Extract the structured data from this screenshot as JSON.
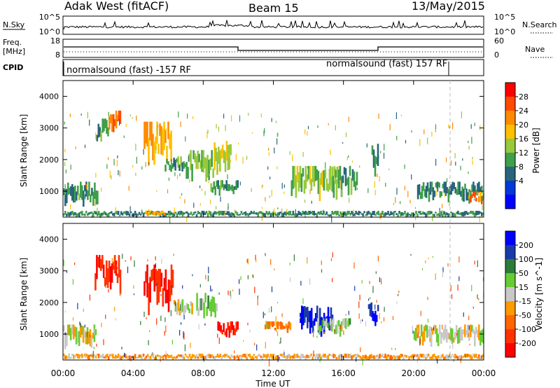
{
  "header": {
    "station": "Adak West (fitACF)",
    "beam": "Beam 15",
    "date": "13/May/2015"
  },
  "nsky_panel": {
    "left_label": "N.Sky",
    "left_ticks": [
      "10^5",
      "10^0"
    ],
    "right_ticks": [
      "10^5",
      "10^0"
    ],
    "right_label": "N.Search"
  },
  "freq_panel": {
    "left_label_1": "Freq.",
    "left_label_2": "[MHz]",
    "left_ticks": [
      "18",
      "8"
    ],
    "right_ticks": [
      "60",
      "0"
    ],
    "right_label": "Nave"
  },
  "cpid_panel": {
    "label": "CPID",
    "seg1": "normalsound (fast) -157 RF",
    "seg2": "normalsound (fast) 157 RF"
  },
  "time_axis": {
    "ticks": [
      "00:00",
      "04:00",
      "08:00",
      "12:00",
      "16:00",
      "20:00",
      "00:00"
    ],
    "label": "Time UT"
  },
  "power_colorbar": {
    "label": "Power [dB]",
    "ticks": [
      "28",
      "24",
      "20",
      "16",
      "12",
      "8",
      "4"
    ],
    "colors": [
      "#ff0000",
      "#ff4a00",
      "#ff8a00",
      "#ffc000",
      "#97c93c",
      "#3f9f4a",
      "#29657a",
      "#003ad8",
      "#0000ff"
    ]
  },
  "velocity_colorbar": {
    "label": "Velocity [m s^-1]",
    "ticks": [
      "200",
      "100",
      "50",
      "15",
      "-15",
      "-50",
      "-100",
      "-200"
    ],
    "colors": [
      "#0000ff",
      "#1a3aa8",
      "#2d7b3a",
      "#66cc33",
      "#c8c8c8",
      "#ff9a00",
      "#ff6600",
      "#ff3300",
      "#ff0000"
    ]
  },
  "chart_data": [
    {
      "type": "heatmap",
      "name": "power",
      "ylabel": "Slant Range [km]",
      "yticks": [
        "1000",
        "2000",
        "3000",
        "4000"
      ],
      "ylim": [
        180,
        4500
      ],
      "xlim": [
        0,
        24
      ],
      "patches": [
        {
          "t0": 0.0,
          "t1": 2.0,
          "r0": 650,
          "r1": 1300,
          "v": 9
        },
        {
          "t0": 1.9,
          "t1": 2.6,
          "r0": 2500,
          "r1": 3300,
          "v": 10
        },
        {
          "t0": 2.6,
          "t1": 3.3,
          "r0": 2850,
          "r1": 3550,
          "v": 24
        },
        {
          "t0": 4.6,
          "t1": 6.2,
          "r0": 1900,
          "r1": 3200,
          "v": 20
        },
        {
          "t0": 5.8,
          "t1": 7.0,
          "r0": 1650,
          "r1": 2100,
          "v": 10
        },
        {
          "t0": 7.0,
          "t1": 8.6,
          "r0": 1400,
          "r1": 2300,
          "v": 12
        },
        {
          "t0": 8.4,
          "t1": 10.0,
          "r0": 950,
          "r1": 1350,
          "v": 9
        },
        {
          "t0": 8.6,
          "t1": 9.6,
          "r0": 1600,
          "r1": 2700,
          "v": 14
        },
        {
          "t0": 13.0,
          "t1": 15.8,
          "r0": 900,
          "r1": 1800,
          "v": 13
        },
        {
          "t0": 15.2,
          "t1": 16.8,
          "r0": 1000,
          "r1": 1800,
          "v": 10
        },
        {
          "t0": 17.6,
          "t1": 18.0,
          "r0": 1600,
          "r1": 2500,
          "v": 10
        },
        {
          "t0": 20.2,
          "t1": 24.0,
          "r0": 750,
          "r1": 1300,
          "v": 8
        },
        {
          "t0": 23.2,
          "t1": 24.0,
          "r0": 600,
          "r1": 1000,
          "v": 22
        },
        {
          "t0": 0.0,
          "t1": 24.0,
          "r0": 200,
          "r1": 380,
          "v": 8
        },
        {
          "t0": 4.7,
          "t1": 5.8,
          "r0": 250,
          "r1": 400,
          "v": 20
        }
      ]
    },
    {
      "type": "heatmap",
      "name": "velocity",
      "ylabel": "Slant Range [km]",
      "yticks": [
        "1000",
        "2000",
        "3000",
        "4000"
      ],
      "ylim": [
        180,
        4500
      ],
      "xlim": [
        0,
        24
      ],
      "patches": [
        {
          "t0": 0.0,
          "t1": 1.9,
          "r0": 650,
          "r1": 1300,
          "v": 0
        },
        {
          "t0": 1.8,
          "t1": 3.3,
          "r0": 2500,
          "r1": 3500,
          "v": -200
        },
        {
          "t0": 4.6,
          "t1": 6.3,
          "r0": 1900,
          "r1": 3200,
          "v": -200
        },
        {
          "t0": 6.3,
          "t1": 7.4,
          "r0": 1600,
          "r1": 2100,
          "v": 0
        },
        {
          "t0": 7.6,
          "t1": 8.8,
          "r0": 1600,
          "r1": 2300,
          "v": 30
        },
        {
          "t0": 8.8,
          "t1": 10.0,
          "r0": 950,
          "r1": 1400,
          "v": -200
        },
        {
          "t0": 11.5,
          "t1": 13.0,
          "r0": 1100,
          "r1": 1400,
          "v": -60
        },
        {
          "t0": 13.5,
          "t1": 15.4,
          "r0": 1000,
          "r1": 1900,
          "v": 200
        },
        {
          "t0": 14.5,
          "t1": 16.4,
          "r0": 1000,
          "r1": 1500,
          "v": 30
        },
        {
          "t0": 17.4,
          "t1": 18.0,
          "r0": 1400,
          "r1": 2000,
          "v": 200
        },
        {
          "t0": 20.0,
          "t1": 24.0,
          "r0": 700,
          "r1": 1300,
          "v": 0
        },
        {
          "t0": 0.0,
          "t1": 24.0,
          "r0": 200,
          "r1": 380,
          "v": -30
        }
      ]
    }
  ]
}
